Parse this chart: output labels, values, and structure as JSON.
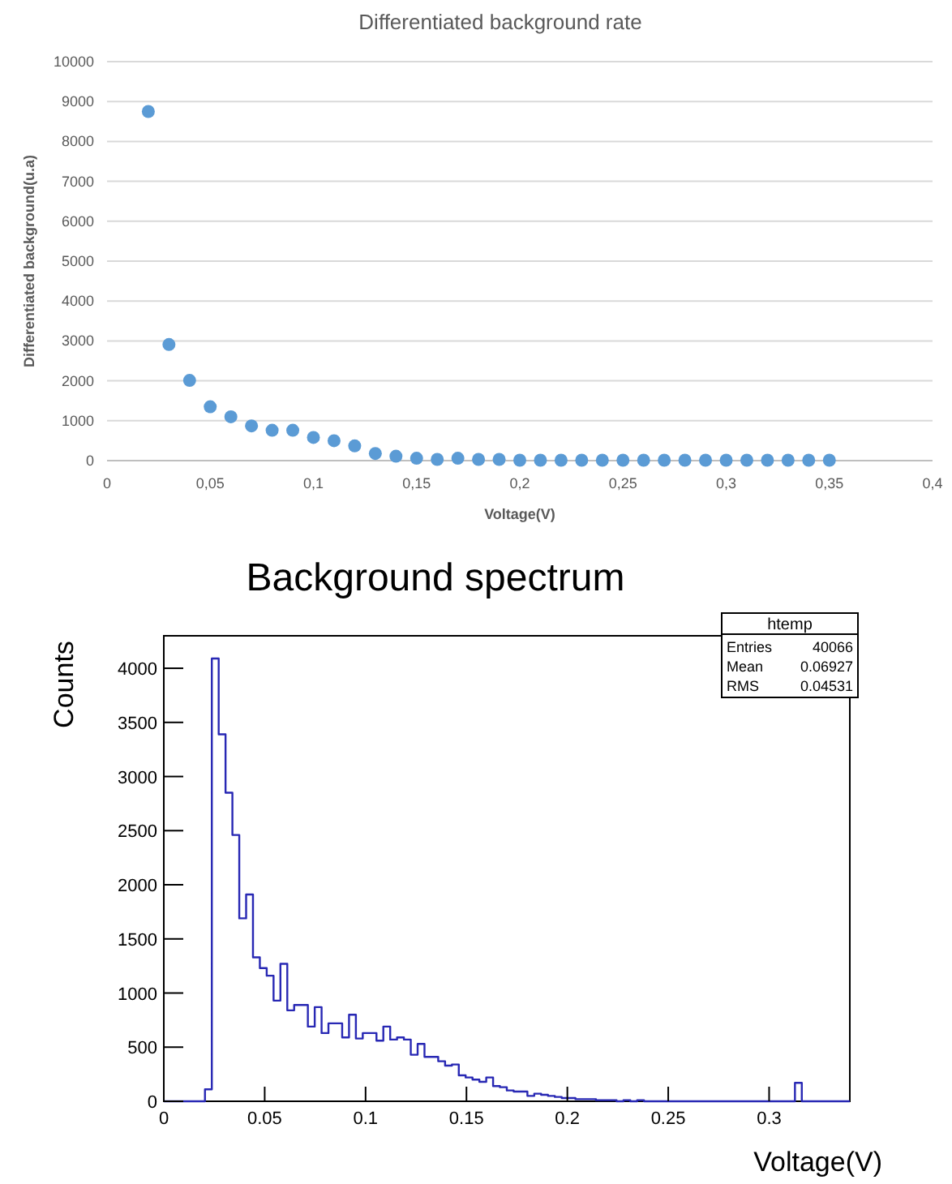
{
  "chart_data": [
    {
      "type": "scatter",
      "title": "Differentiated background rate",
      "xlabel": "Voltage(V)",
      "ylabel": "Differentiated background(u.a)",
      "x": [
        0.02,
        0.03,
        0.04,
        0.05,
        0.06,
        0.07,
        0.08,
        0.09,
        0.1,
        0.11,
        0.12,
        0.13,
        0.14,
        0.15,
        0.16,
        0.17,
        0.18,
        0.19,
        0.2,
        0.21,
        0.22,
        0.23,
        0.24,
        0.25,
        0.26,
        0.27,
        0.28,
        0.29,
        0.3,
        0.31,
        0.32,
        0.33,
        0.34,
        0.35
      ],
      "series": [
        {
          "color": "#5b9bd5",
          "values": [
            8750,
            2910,
            2010,
            1350,
            1100,
            870,
            760,
            760,
            580,
            500,
            370,
            180,
            110,
            60,
            30,
            60,
            30,
            30,
            10,
            10,
            10,
            10,
            10,
            10,
            10,
            10,
            10,
            10,
            10,
            10,
            10,
            10,
            10,
            10
          ]
        }
      ],
      "xlim": [
        0,
        0.4
      ],
      "xticks": [
        0,
        {
          "value": 0.05,
          "label": "0,05"
        },
        {
          "value": 0.1,
          "label": "0,1"
        },
        {
          "value": 0.15,
          "label": "0,15"
        },
        {
          "value": 0.2,
          "label": "0,2"
        },
        {
          "value": 0.25,
          "label": "0,25"
        },
        {
          "value": 0.3,
          "label": "0,3"
        },
        {
          "value": 0.35,
          "label": "0,35"
        },
        {
          "value": 0.4,
          "label": "0,4"
        }
      ],
      "ylim": [
        0,
        10000
      ],
      "yticks": [
        0,
        1000,
        2000,
        3000,
        4000,
        5000,
        6000,
        7000,
        8000,
        9000,
        10000
      ],
      "grid": "y",
      "marker": "circle"
    },
    {
      "type": "histogram",
      "title": "Background spectrum",
      "xlabel": "Voltage(V)",
      "ylabel": "Counts",
      "color": "#2828b4",
      "bins": [
        0,
        0.0034,
        0.0068,
        0.0102,
        0.0136,
        0.017,
        0.0204,
        0.0238,
        0.0272,
        0.0306,
        0.034,
        0.0374,
        0.0408,
        0.0442,
        0.0476,
        0.051,
        0.0544,
        0.0578,
        0.0612,
        0.0646,
        0.068,
        0.0714,
        0.0748,
        0.0782,
        0.0816,
        0.085,
        0.0884,
        0.0918,
        0.0952,
        0.0986,
        0.102,
        0.1054,
        0.1088,
        0.1122,
        0.1156,
        0.119,
        0.1224,
        0.1258,
        0.1292,
        0.1326,
        0.136,
        0.1394,
        0.1428,
        0.1462,
        0.1496,
        0.153,
        0.1564,
        0.1598,
        0.1632,
        0.1666,
        0.17,
        0.1734,
        0.1768,
        0.1802,
        0.1836,
        0.187,
        0.1904,
        0.1938,
        0.1972,
        0.2006,
        0.204,
        0.2074,
        0.2108,
        0.2142,
        0.2176,
        0.221,
        0.2244,
        0.2278,
        0.2312,
        0.2346,
        0.238,
        0.2414,
        0.2448,
        0.2482,
        0.2516,
        0.255,
        0.2584,
        0.2618,
        0.2652,
        0.2686,
        0.272,
        0.2754,
        0.2788,
        0.2822,
        0.2856,
        0.289,
        0.2924,
        0.2958,
        0.2992,
        0.3026,
        0.306,
        0.3094,
        0.3128,
        0.3162,
        0.3196,
        0.323,
        0.3264,
        0.3298,
        0.3332,
        0.3366,
        0.34
      ],
      "values": [
        0,
        0,
        0,
        0,
        0,
        0,
        110,
        4090,
        3390,
        2850,
        2460,
        1690,
        1910,
        1330,
        1230,
        1160,
        930,
        1270,
        840,
        890,
        890,
        690,
        870,
        630,
        720,
        720,
        590,
        800,
        580,
        630,
        630,
        560,
        690,
        570,
        590,
        570,
        430,
        530,
        410,
        410,
        370,
        330,
        340,
        240,
        220,
        200,
        180,
        220,
        140,
        130,
        100,
        90,
        90,
        50,
        70,
        60,
        50,
        40,
        30,
        30,
        20,
        20,
        20,
        10,
        10,
        10,
        0,
        10,
        0,
        10,
        0,
        0,
        0,
        0,
        0,
        0,
        0,
        0,
        0,
        0,
        0,
        0,
        0,
        0,
        0,
        0,
        0,
        0,
        0,
        0,
        0,
        0,
        170,
        0,
        0,
        0,
        0,
        0,
        0,
        0
      ],
      "xlim": [
        0,
        0.34
      ],
      "xticks": [
        0,
        0.05,
        0.1,
        0.15,
        0.2,
        0.25,
        0.3
      ],
      "ylim": [
        0,
        4300
      ],
      "yticks": [
        0,
        500,
        1000,
        1500,
        2000,
        2500,
        3000,
        3500,
        4000
      ],
      "grid": false,
      "legend_title": "htemp",
      "annotations": [
        "Entries 40066",
        "Mean 0.06927",
        "RMS 0.04531"
      ]
    }
  ]
}
